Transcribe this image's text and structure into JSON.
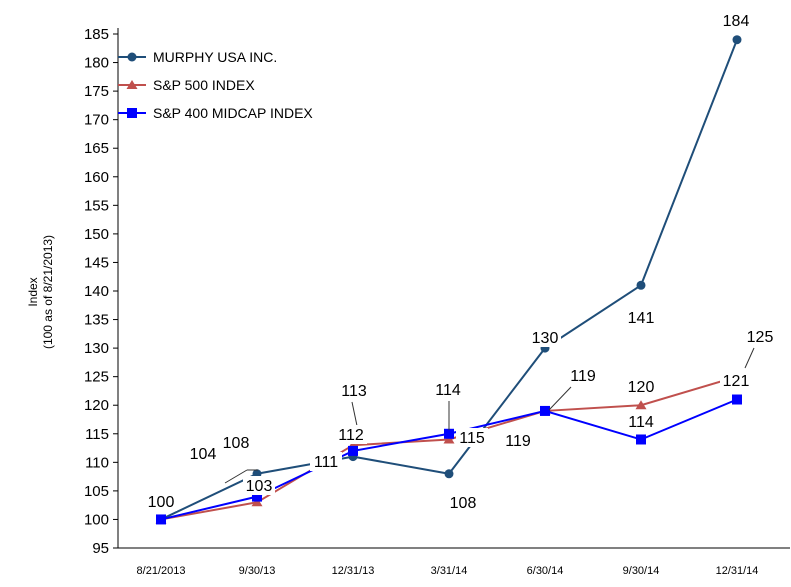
{
  "chart_data": {
    "type": "line",
    "title": "",
    "xlabel": "",
    "ylabel": "Index",
    "ylabel_sub": "(100 as of 8/21/2013)",
    "categories": [
      "8/21/2013",
      "9/30/13",
      "12/31/13",
      "3/31/14",
      "6/30/14",
      "9/30/14",
      "12/31/14"
    ],
    "ylim": [
      95,
      185
    ],
    "yticks": [
      95,
      100,
      105,
      110,
      115,
      120,
      125,
      130,
      135,
      140,
      145,
      150,
      155,
      160,
      165,
      170,
      175,
      180,
      185
    ],
    "grid": false,
    "legend_position": "top-left",
    "series": [
      {
        "name": "MURPHY USA INC.",
        "values": [
          100,
          108,
          111,
          108,
          130,
          141,
          184
        ],
        "color": "#1f4e79",
        "marker": "circle"
      },
      {
        "name": "S&P 500 INDEX",
        "values": [
          100,
          103,
          113,
          114,
          119,
          120,
          125
        ],
        "color": "#c0504d",
        "marker": "triangle"
      },
      {
        "name": "S&P 400 MIDCAP INDEX",
        "values": [
          100,
          104,
          112,
          115,
          119,
          114,
          121
        ],
        "color": "#0000ff",
        "marker": "square"
      }
    ]
  }
}
